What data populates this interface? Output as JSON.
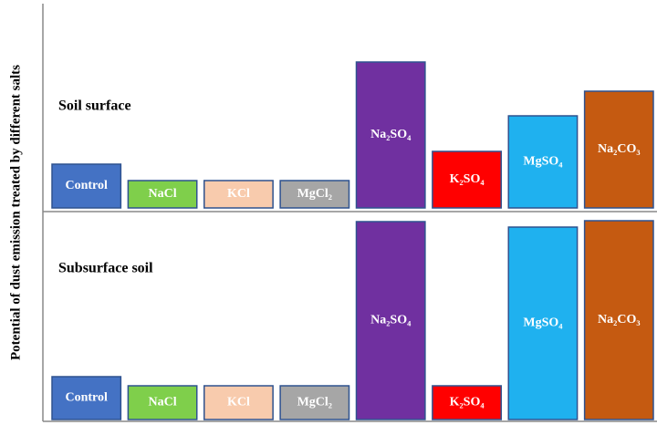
{
  "y_axis_label": "Potential of dust emission treated by different salts",
  "chart_data": [
    {
      "type": "bar",
      "title": "Soil surface",
      "categories": [
        "Control",
        "NaCl",
        "KCl",
        "MgCl₂",
        "Na₂SO₄",
        "K₂SO₄",
        "MgSO₄",
        "Na₂CO₃"
      ],
      "values": [
        48,
        30,
        30,
        30,
        160,
        62,
        101,
        128
      ],
      "colors": [
        "#4472c4",
        "#7fcf4b",
        "#f8cbad",
        "#a6a6a6",
        "#7030a0",
        "#ff0000",
        "#1fb1ef",
        "#c55a11"
      ],
      "ylim": [
        0,
        225
      ]
    },
    {
      "type": "bar",
      "title": "Subsurface soil",
      "categories": [
        "Control",
        "NaCl",
        "KCl",
        "MgCl₂",
        "Na₂SO₄",
        "K₂SO₄",
        "MgSO₄",
        "Na₂CO₃"
      ],
      "values": [
        47,
        37,
        37,
        37,
        217,
        37,
        211,
        218
      ],
      "colors": [
        "#4472c4",
        "#7fcf4b",
        "#f8cbad",
        "#a6a6a6",
        "#7030a0",
        "#ff0000",
        "#1fb1ef",
        "#c55a11"
      ],
      "ylim": [
        0,
        225
      ]
    }
  ]
}
